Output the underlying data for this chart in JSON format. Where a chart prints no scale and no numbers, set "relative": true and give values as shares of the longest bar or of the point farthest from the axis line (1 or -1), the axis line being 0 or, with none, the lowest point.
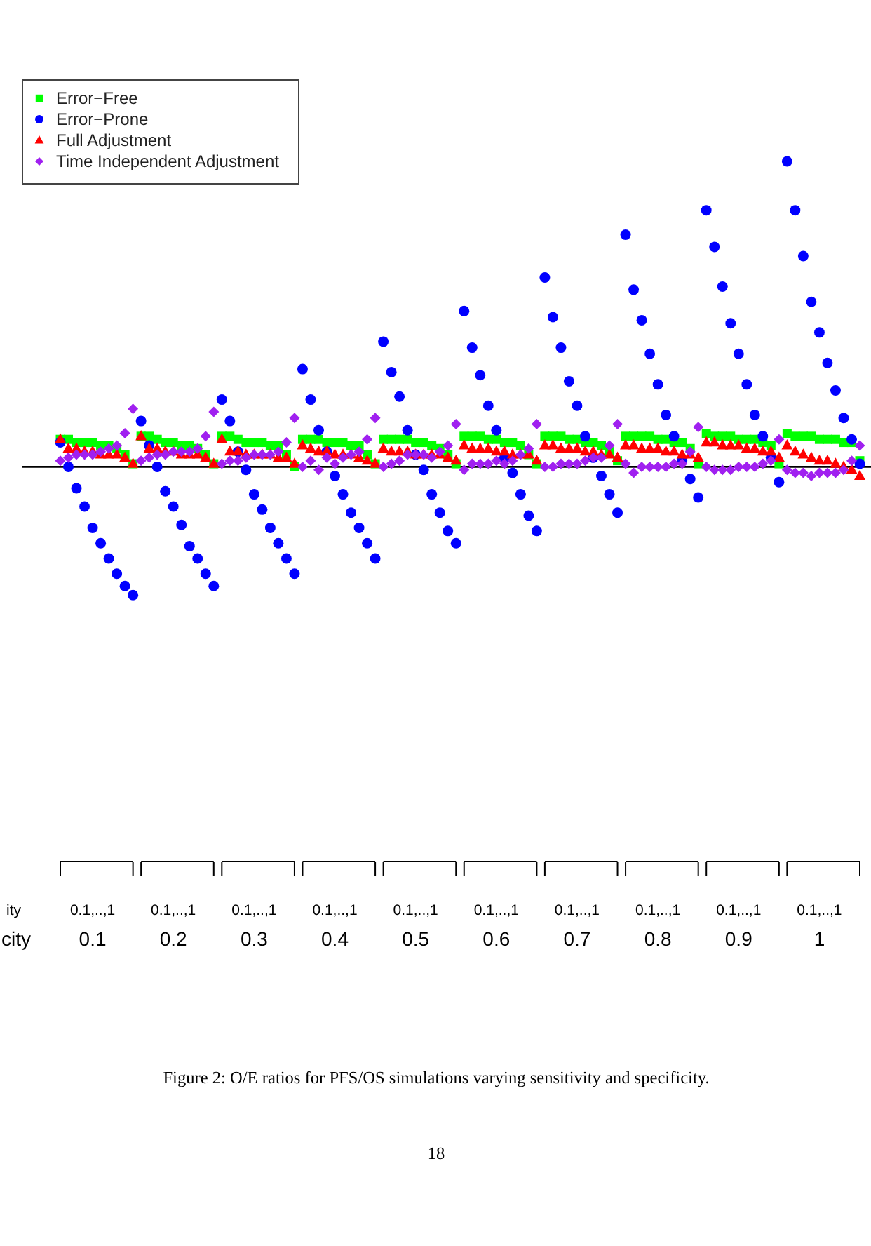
{
  "chart_data": {
    "type": "scatter",
    "relative": true,
    "legend": "top left",
    "categories": [
      null,
      null,
      null,
      null,
      "0.1,..,1",
      null,
      null,
      null,
      null,
      null,
      null,
      null,
      null,
      null,
      "0.1,..,1",
      null,
      null,
      null,
      null,
      null,
      null,
      null,
      null,
      null,
      "0.1,..,1",
      null,
      null,
      null,
      null,
      null,
      null,
      null,
      null,
      null,
      "0.1,..,1",
      null,
      null,
      null,
      null,
      null,
      null,
      null,
      null,
      null,
      "0.1,..,1",
      null,
      null,
      null,
      null,
      null,
      null,
      null,
      null,
      null,
      "0.1,..,1",
      null,
      null,
      null,
      null,
      null,
      null,
      null,
      null,
      null,
      "0.1,..,1",
      null,
      null,
      null,
      null,
      null,
      null,
      null,
      null,
      null,
      "0.1,..,1",
      null,
      null,
      null,
      null,
      null,
      null,
      null,
      null,
      null,
      "0.1,..,1",
      null,
      null,
      null,
      null,
      null,
      null,
      null,
      null,
      null,
      "0.1,..,1",
      null,
      null,
      null,
      null,
      null
    ],
    "series": [
      {
        "name": "Error−Free",
        "color": "#00ff00",
        "marker": "square",
        "values": [
          0.09,
          0.09,
          0.08,
          0.08,
          0.08,
          0.07,
          0.07,
          0.06,
          0.04,
          0.01,
          0.1,
          0.1,
          0.09,
          0.08,
          0.08,
          0.07,
          0.07,
          0.06,
          0.04,
          0.01,
          0.1,
          0.1,
          0.09,
          0.08,
          0.08,
          0.08,
          0.07,
          0.07,
          0.04,
          0,
          0.09,
          0.09,
          0.09,
          0.08,
          0.08,
          0.08,
          0.07,
          0.07,
          0.04,
          0.01,
          0.09,
          0.09,
          0.09,
          0.09,
          0.08,
          0.08,
          0.07,
          0.06,
          0.04,
          0.01,
          0.1,
          0.1,
          0.1,
          0.09,
          0.09,
          0.08,
          0.08,
          0.07,
          0.04,
          0.01,
          0.1,
          0.1,
          0.1,
          0.09,
          0.09,
          0.08,
          0.08,
          0.07,
          0.05,
          0.02,
          0.1,
          0.1,
          0.1,
          0.1,
          0.09,
          0.09,
          0.08,
          0.08,
          0.06,
          0.01,
          0.11,
          0.1,
          0.1,
          0.1,
          0.09,
          0.09,
          0.09,
          0.08,
          0.07,
          0.01,
          0.11,
          0.1,
          0.1,
          0.1,
          0.09,
          0.09,
          0.09,
          0.08,
          0.08,
          0.02
        ]
      },
      {
        "name": "Error−Prone",
        "color": "#0000ff",
        "marker": "circle",
        "values": [
          0.08,
          0,
          -0.07,
          -0.13,
          -0.2,
          -0.25,
          -0.3,
          -0.35,
          -0.39,
          -0.42,
          0.15,
          0.07,
          0,
          -0.08,
          -0.13,
          -0.19,
          -0.26,
          -0.3,
          -0.35,
          -0.39,
          0.22,
          0.15,
          0.05,
          -0.01,
          -0.09,
          -0.14,
          -0.2,
          -0.25,
          -0.3,
          -0.35,
          0.32,
          0.22,
          0.12,
          0.05,
          -0.03,
          -0.09,
          -0.15,
          -0.2,
          -0.25,
          -0.3,
          0.41,
          0.31,
          0.23,
          0.12,
          0.04,
          -0.01,
          -0.09,
          -0.15,
          -0.21,
          -0.25,
          0.51,
          0.39,
          0.3,
          0.2,
          0.12,
          0.03,
          -0.02,
          -0.09,
          -0.16,
          -0.21,
          0.62,
          0.49,
          0.39,
          0.28,
          0.2,
          0.1,
          0.03,
          -0.03,
          -0.09,
          -0.15,
          0.76,
          0.58,
          0.48,
          0.37,
          0.27,
          0.17,
          0.1,
          0.02,
          -0.04,
          -0.1,
          0.84,
          0.72,
          0.59,
          0.47,
          0.37,
          0.27,
          0.17,
          0.1,
          0.03,
          -0.05,
          1,
          0.84,
          0.69,
          0.54,
          0.44,
          0.34,
          0.25,
          0.16,
          0.09,
          0.01
        ]
      },
      {
        "name": "Full Adjustment",
        "color": "#ff0000",
        "marker": "triangle",
        "values": [
          0.09,
          0.06,
          0.06,
          0.05,
          0.05,
          0.04,
          0.04,
          0.04,
          0.03,
          0.01,
          0.1,
          0.06,
          0.06,
          0.05,
          0.05,
          0.04,
          0.04,
          0.04,
          0.03,
          0.01,
          0.09,
          0.05,
          0.05,
          0.04,
          0.04,
          0.04,
          0.04,
          0.03,
          0.03,
          0.01,
          0.07,
          0.06,
          0.05,
          0.05,
          0.04,
          0.04,
          0.04,
          0.03,
          0.02,
          0.01,
          0.06,
          0.05,
          0.05,
          0.05,
          0.04,
          0.04,
          0.04,
          0.04,
          0.03,
          0.02,
          0.07,
          0.06,
          0.06,
          0.06,
          0.05,
          0.05,
          0.04,
          0.04,
          0.04,
          0.02,
          0.07,
          0.07,
          0.06,
          0.06,
          0.06,
          0.05,
          0.05,
          0.04,
          0.04,
          0.03,
          0.07,
          0.07,
          0.06,
          0.06,
          0.06,
          0.05,
          0.05,
          0.04,
          0.04,
          0.03,
          0.08,
          0.08,
          0.07,
          0.07,
          0.07,
          0.06,
          0.06,
          0.05,
          0.05,
          0.03,
          0.07,
          0.05,
          0.04,
          0.03,
          0.02,
          0.02,
          0.01,
          0,
          -0.01,
          -0.03
        ]
      },
      {
        "name": "Time Independent Adjustment",
        "color": "#a020f0",
        "marker": "diamond",
        "values": [
          0.02,
          0.03,
          0.04,
          0.04,
          0.04,
          0.05,
          0.06,
          0.07,
          0.11,
          0.19,
          0.02,
          0.03,
          0.04,
          0.04,
          0.05,
          0.05,
          0.05,
          0.06,
          0.1,
          0.18,
          0.01,
          0.02,
          0.02,
          0.03,
          0.04,
          0.04,
          0.04,
          0.05,
          0.08,
          0.16,
          0,
          0.02,
          -0.01,
          0.03,
          0.01,
          0.03,
          0.04,
          0.05,
          0.09,
          0.16,
          0,
          0.01,
          0.02,
          0.04,
          0.04,
          0.04,
          0.03,
          0.05,
          0.07,
          0.14,
          -0.01,
          0.01,
          0.01,
          0.01,
          0.02,
          0.01,
          0.02,
          0.04,
          0.06,
          0.14,
          0,
          0,
          0.01,
          0.01,
          0.01,
          0.02,
          0.03,
          0.03,
          0.07,
          0.14,
          0.01,
          -0.02,
          0,
          0,
          0,
          0,
          0.01,
          0.01,
          0.05,
          0.13,
          0,
          -0.01,
          -0.01,
          -0.01,
          0,
          0,
          0,
          0.01,
          0.02,
          0.09,
          -0.01,
          -0.02,
          -0.02,
          -0.03,
          -0.02,
          -0.02,
          -0.02,
          -0.01,
          0.02,
          0.07
        ]
      }
    ],
    "ref_lines": [
      {
        "axis": "y",
        "value": 0
      }
    ],
    "annotations": [
      "ity",
      "city",
      "0.1",
      "0.2",
      "0.3",
      "0.4",
      "0.5",
      "0.6",
      "0.7",
      "0.8",
      "0.9",
      "1",
      "Figure 2: O/E ratios for PFS/OS simulations varying sensitivity and specificity.",
      "18"
    ]
  }
}
